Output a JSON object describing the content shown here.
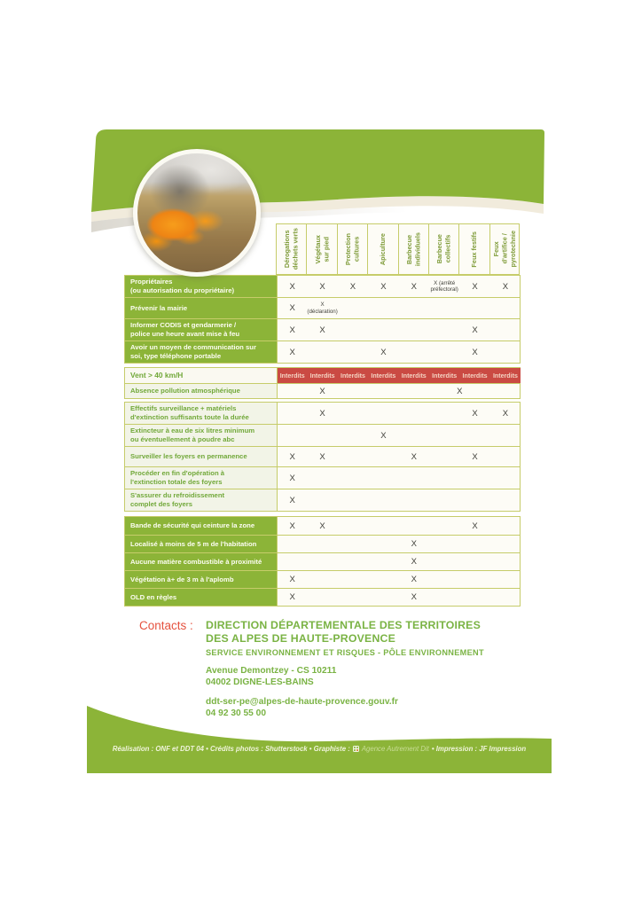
{
  "colors": {
    "brand_green": "#8cb438",
    "olive_border": "#c6cc6a",
    "forbidden_red": "#ca4a43",
    "text_green": "#76ab3d",
    "contacts_red": "#e5523f"
  },
  "header": {
    "photo": "burning-grassland-photo"
  },
  "table": {
    "columns": [
      "Dérogations\ndéchets verts",
      "Végétaux\nsur pied",
      "Protection\ncultures",
      "Apiculture",
      "Barbecue\nindividuels",
      "Barbecue\ncollectifs",
      "Feux festifs",
      "Feux\nd'artifice /\npyrotechnie"
    ],
    "sections": [
      {
        "rows": [
          {
            "style": "green",
            "label": "Propriétaires\n(ou autorisation du propriétaire)",
            "cells": [
              "X",
              "X",
              "X",
              "X",
              "X",
              {
                "text": "X (arrêté\npréfectoral)",
                "small": true
              },
              "X",
              "X"
            ]
          },
          {
            "style": "green",
            "label": "Prévenir la mairie",
            "cells": [
              "X",
              {
                "text": "X\n(déclaration)",
                "small": true
              },
              "",
              "",
              "",
              "",
              "",
              ""
            ]
          },
          {
            "style": "green",
            "label": "Informer CODIS et gendarmerie /\npolice une heure avant mise à feu",
            "cells": [
              "X",
              "X",
              "",
              "",
              "",
              "",
              "X",
              ""
            ]
          },
          {
            "style": "green",
            "label": "Avoir un moyen de communication sur\nsoi, type téléphone portable",
            "cells": [
              "X",
              "",
              "",
              "X",
              "",
              "",
              "X",
              ""
            ]
          }
        ]
      },
      {
        "rows": [
          {
            "style": "red",
            "label": "Vent > 40 km/H",
            "cells": [
              "Interdits",
              "Interdits",
              "Interdits",
              "Interdits",
              "Interdits",
              "Interdits",
              "Interdits",
              "Interdits"
            ]
          },
          {
            "style": "pale",
            "label": "Absence pollution atmosphérique",
            "cells": [
              "",
              "X",
              "",
              "",
              {
                "text": "X",
                "span": 4
              }
            ]
          }
        ]
      },
      {
        "rows": [
          {
            "style": "pale",
            "label": "Effectifs surveillance + matériels\nd'extinction suffisants toute la durée",
            "cells": [
              "",
              "X",
              "",
              "",
              "",
              "",
              "X",
              "X"
            ]
          },
          {
            "style": "pale",
            "label": "Extincteur à eau de six litres minimum\nou éventuellement à poudre abc",
            "cells": [
              "",
              "",
              "",
              "X",
              "",
              "",
              "",
              ""
            ]
          },
          {
            "style": "pale",
            "label": "Surveiller les foyers en permanence",
            "cells": [
              "X",
              "X",
              "",
              "",
              "X",
              "",
              "X",
              ""
            ]
          },
          {
            "style": "pale",
            "label": "Procéder en fin d'opération à\nl'extinction totale des foyers",
            "cells": [
              "X",
              "",
              "",
              "",
              "",
              "",
              "",
              ""
            ]
          },
          {
            "style": "pale",
            "label": "S'assurer du refroidissement\ncomplet des foyers",
            "cells": [
              "X",
              "",
              "",
              "",
              "",
              "",
              "",
              ""
            ]
          }
        ]
      },
      {
        "rows": [
          {
            "style": "green",
            "label": "Bande de sécurité qui ceinture la zone",
            "cells": [
              "X",
              "X",
              "",
              "",
              "",
              "",
              "X",
              ""
            ]
          },
          {
            "style": "green",
            "label": "Localisé à moins de 5 m de l'habitation",
            "cells": [
              "",
              "",
              "",
              "",
              "X",
              "",
              "",
              ""
            ]
          },
          {
            "style": "green",
            "label": "Aucune matière combustible à proximité",
            "cells": [
              "",
              "",
              "",
              "",
              "X",
              "",
              "",
              ""
            ]
          },
          {
            "style": "green",
            "label": "Végétation à+ de 3 m à l'aplomb",
            "cells": [
              "X",
              "",
              "",
              "",
              "X",
              "",
              "",
              ""
            ]
          },
          {
            "style": "green",
            "label": "OLD en règles",
            "cells": [
              "X",
              "",
              "",
              "",
              "X",
              "",
              "",
              ""
            ]
          }
        ]
      }
    ]
  },
  "contacts": {
    "label": "Contacts :",
    "org_line1": "DIRECTION DÉPARTEMENTALE DES TERRITOIRES",
    "org_line2": "DES ALPES DE HAUTE-PROVENCE",
    "service": "SERVICE ENVIRONNEMENT ET RISQUES - PÔLE ENVIRONNEMENT",
    "address1": "Avenue Demontzey -  CS 10211",
    "address2": "04002 DIGNE-LES-BAINS",
    "email": "ddt-ser-pe@alpes-de-haute-provence.gouv.fr",
    "phone": "04 92 30 55 00"
  },
  "footer": {
    "credits_left": "Réalisation : ONF et DDT 04 • Crédits photos : Shutterstock • Graphiste :",
    "agency": "Agence Autrement Dit",
    "credits_right": "• Impression : JF Impression"
  }
}
